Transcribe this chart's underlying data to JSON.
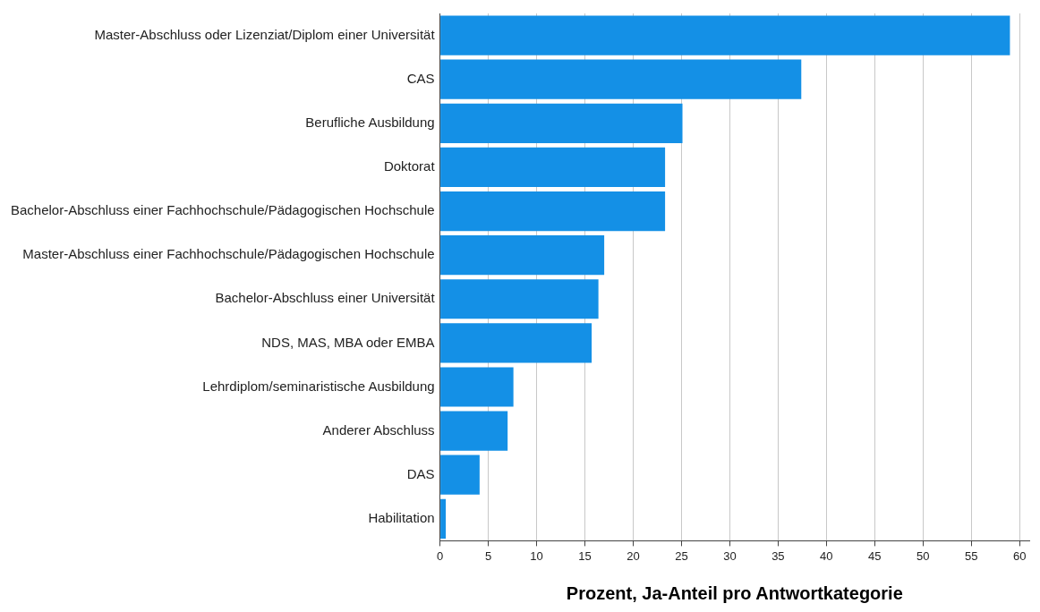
{
  "chart_data": {
    "type": "bar",
    "orientation": "horizontal",
    "xlabel": "Prozent, Ja-Anteil pro Antwortkategorie",
    "categories": [
      "Master-Abschluss oder Lizenziat/Diplom einer Universität",
      "CAS",
      "Berufliche Ausbildung",
      "Doktorat",
      "Bachelor-Abschluss einer Fachhochschule/Pädagogischen Hochschule",
      "Master-Abschluss einer Fachhochschule/Pädagogischen Hochschule",
      "Bachelor-Abschluss einer Universität",
      "NDS, MAS, MBA oder EMBA",
      "Lehrdiplom/seminaristische Ausbildung",
      "Anderer Abschluss",
      "DAS",
      "Habilitation"
    ],
    "values": [
      59.0,
      37.4,
      25.1,
      23.3,
      23.3,
      17.0,
      16.4,
      15.7,
      7.6,
      7.0,
      4.1,
      0.6
    ],
    "color": "#1490e6",
    "xlim": [
      0,
      61
    ],
    "xticks": [
      0,
      5,
      10,
      15,
      20,
      25,
      30,
      35,
      40,
      45,
      50,
      55,
      60
    ],
    "grid": "x",
    "legend": false
  }
}
